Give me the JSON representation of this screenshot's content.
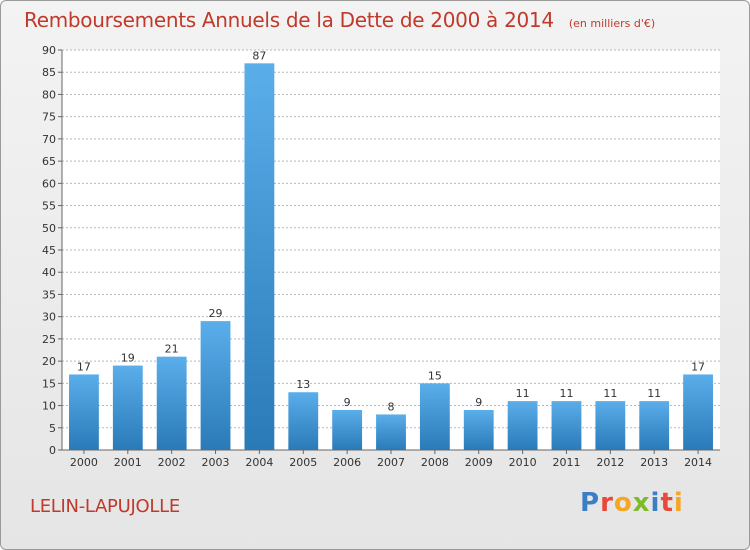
{
  "title": "Remboursements Annuels de la Dette de 2000 à 2014",
  "unit_note": "(en milliers d'€)",
  "commune": "LELIN-LAPUJOLLE",
  "logo_text": "Proxiti",
  "logo_letters": [
    "P",
    "r",
    "o",
    "x",
    "i",
    "t",
    "i"
  ],
  "colors": {
    "title": "#c0392b",
    "bar_light": "#5aaeea",
    "bar_dark": "#2a7ab8",
    "grid": "#b8b8b8"
  },
  "chart_data": {
    "type": "bar",
    "title": "Remboursements Annuels de la Dette de 2000 à 2014",
    "categories": [
      "2000",
      "2001",
      "2002",
      "2003",
      "2004",
      "2005",
      "2006",
      "2007",
      "2008",
      "2009",
      "2010",
      "2011",
      "2012",
      "2013",
      "2014"
    ],
    "values": [
      17,
      19,
      21,
      29,
      87,
      13,
      9,
      8,
      15,
      9,
      11,
      11,
      11,
      11,
      17
    ],
    "ylim": [
      0,
      90
    ],
    "yticks": [
      0,
      5,
      10,
      15,
      20,
      25,
      30,
      35,
      40,
      45,
      50,
      55,
      60,
      65,
      70,
      75,
      80,
      85,
      90
    ],
    "grid": true,
    "xlabel": "",
    "ylabel": ""
  }
}
